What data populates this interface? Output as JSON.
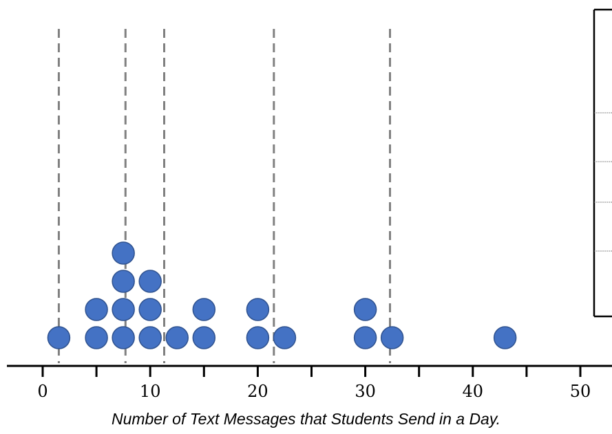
{
  "chart_data": {
    "type": "scatter",
    "subtype": "dot-plot",
    "title": "",
    "xlabel": "Number of Text Messages that Students Send in a Day.",
    "ylabel": "",
    "xlim": [
      0,
      50
    ],
    "major_ticks": [
      0,
      10,
      20,
      30,
      40,
      50
    ],
    "minor_ticks": [
      5,
      15,
      25,
      35,
      45
    ],
    "tick_labels": [
      "0",
      "10",
      "20",
      "30",
      "40",
      "50"
    ],
    "dot_color": "#4472c4",
    "dot_edge_color": "#2f528f",
    "reference_line_color": "#808080",
    "reference_lines_x": [
      1.5,
      7.7,
      11.3,
      21.5,
      32.3
    ],
    "points": [
      {
        "x": 1.5,
        "stack": 1
      },
      {
        "x": 5,
        "stack": 1
      },
      {
        "x": 5,
        "stack": 2
      },
      {
        "x": 7.5,
        "stack": 1
      },
      {
        "x": 7.5,
        "stack": 2
      },
      {
        "x": 7.5,
        "stack": 3
      },
      {
        "x": 7.5,
        "stack": 4
      },
      {
        "x": 10,
        "stack": 1
      },
      {
        "x": 10,
        "stack": 2
      },
      {
        "x": 10,
        "stack": 3
      },
      {
        "x": 12.5,
        "stack": 1
      },
      {
        "x": 15,
        "stack": 1
      },
      {
        "x": 15,
        "stack": 2
      },
      {
        "x": 20,
        "stack": 1
      },
      {
        "x": 20,
        "stack": 2
      },
      {
        "x": 22.5,
        "stack": 1
      },
      {
        "x": 30,
        "stack": 1
      },
      {
        "x": 30,
        "stack": 2
      },
      {
        "x": 32.5,
        "stack": 1
      },
      {
        "x": 43,
        "stack": 1
      }
    ]
  }
}
